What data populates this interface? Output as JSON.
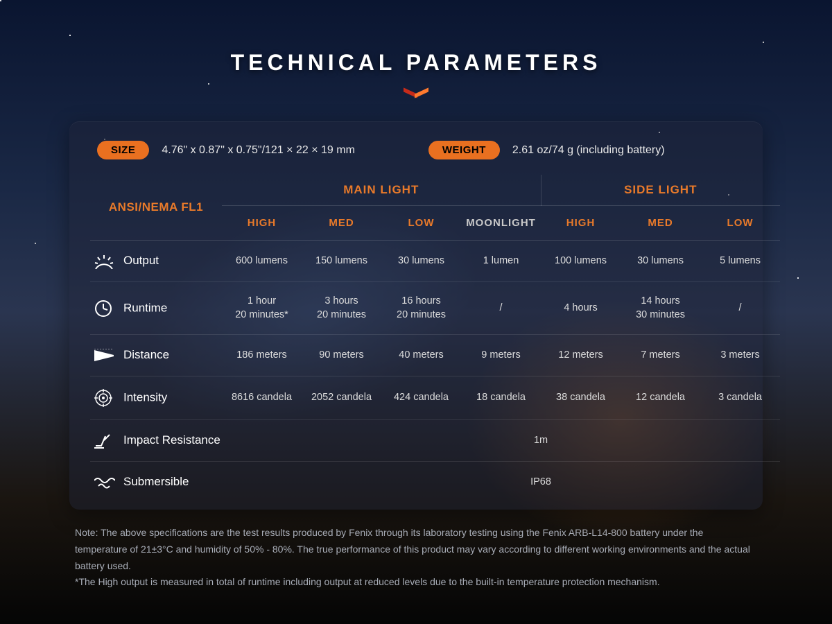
{
  "colors": {
    "accent_orange": "#e97a2a",
    "pill_bg": "#e97020",
    "text_light": "#dcdcdc",
    "text_muted": "#a9aeb8",
    "border": "rgba(255,255,255,.12)",
    "panel_bg": "rgba(30,35,55,0.45)"
  },
  "title": "TECHNICAL PARAMETERS",
  "size_label": "SIZE",
  "size_value": "4.76\" x 0.87\" x 0.75\"/121 × 22 × 19 mm",
  "weight_label": "WEIGHT",
  "weight_value": "2.61 oz/74 g (including battery)",
  "standard_label": "ANSI/NEMA FL1",
  "groups": {
    "main": "MAIN LIGHT",
    "side": "SIDE LIGHT"
  },
  "columns": {
    "main": [
      "HIGH",
      "MED",
      "LOW",
      "MOONLIGHT"
    ],
    "side": [
      "HIGH",
      "MED",
      "LOW"
    ]
  },
  "rows": {
    "output": {
      "label": "Output",
      "values": [
        "600 lumens",
        "150 lumens",
        "30 lumens",
        "1 lumen",
        "100 lumens",
        "30 lumens",
        "5 lumens"
      ]
    },
    "runtime": {
      "label": "Runtime",
      "values": [
        "1 hour\n20 minutes*",
        "3 hours\n20 minutes",
        "16 hours\n20 minutes",
        "/",
        "4 hours",
        "14 hours\n30 minutes",
        "/"
      ]
    },
    "distance": {
      "label": "Distance",
      "values": [
        "186 meters",
        "90 meters",
        "40 meters",
        "9 meters",
        "12 meters",
        "7 meters",
        "3 meters"
      ]
    },
    "intensity": {
      "label": "Intensity",
      "values": [
        "8616 candela",
        "2052 candela",
        "424 candela",
        "18 candela",
        "38 candela",
        "12 candela",
        "3 candela"
      ]
    },
    "impact": {
      "label": "Impact Resistance",
      "value": "1m"
    },
    "submersible": {
      "label": "Submersible",
      "value": "IP68"
    }
  },
  "note_line1": "Note: The above specifications are the test results produced by Fenix through its laboratory testing using the Fenix ARB-L14-800 battery under the temperature of 21±3°C and humidity of 50% - 80%. The true performance of this product may vary according to different working environments and the actual battery used.",
  "note_line2": "*The High output is measured in total of runtime including output at reduced levels due to the built-in temperature protection mechanism."
}
